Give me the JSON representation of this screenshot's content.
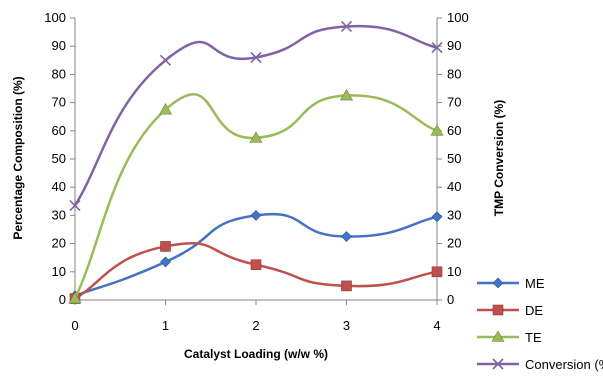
{
  "chart_data": {
    "type": "line",
    "x": [
      0,
      1,
      2,
      3,
      4
    ],
    "xlabel": "Catalyst Loading (w/w %)",
    "ylabel": "Percentage Composition (%)",
    "y2label": "TMP Conversion (%)",
    "xlim": [
      0,
      4
    ],
    "ylim": [
      0,
      100
    ],
    "y2lim": [
      0,
      100
    ],
    "yticks": [
      0,
      10,
      20,
      30,
      40,
      50,
      60,
      70,
      80,
      90,
      100
    ],
    "xticks": [
      0,
      1,
      2,
      3,
      4
    ],
    "grid": false,
    "smooth": true,
    "legend_position": "bottom-right",
    "series": [
      {
        "name": "ME",
        "values": [
          1.5,
          13.5,
          30,
          22.5,
          29.5
        ],
        "color": "#4472C4",
        "marker": "diamond",
        "axis": "left"
      },
      {
        "name": "DE",
        "values": [
          0.5,
          19,
          12.5,
          5,
          10
        ],
        "color": "#C0504D",
        "marker": "square",
        "axis": "left"
      },
      {
        "name": "TE",
        "values": [
          0.5,
          67.5,
          57.5,
          72.5,
          60
        ],
        "color": "#9BBB59",
        "marker": "triangle",
        "axis": "left"
      },
      {
        "name": "Conversion (%)",
        "values": [
          33.5,
          85,
          86,
          97,
          89.5
        ],
        "color": "#8064A2",
        "marker": "x",
        "axis": "right"
      }
    ]
  }
}
